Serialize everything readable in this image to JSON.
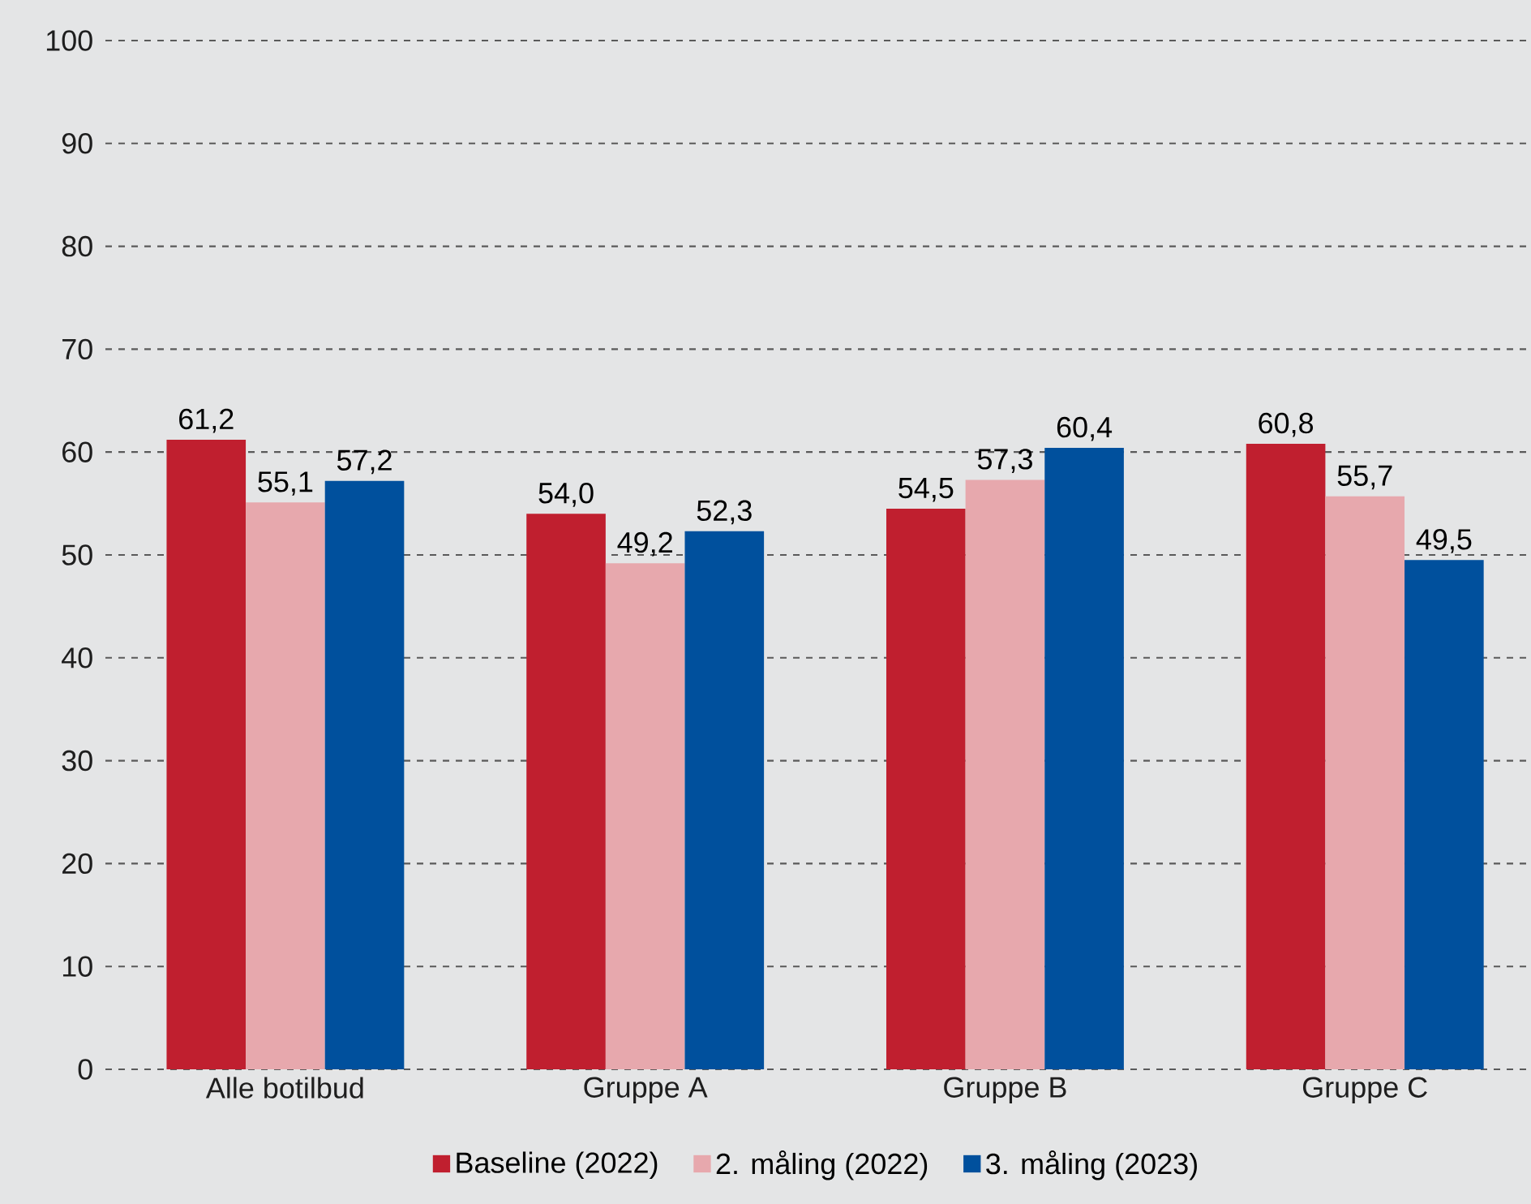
{
  "chart_data": {
    "type": "bar",
    "categories": [
      "Alle botilbud",
      "Gruppe A",
      "Gruppe B",
      "Gruppe C"
    ],
    "series": [
      {
        "name": "Baseline (2022)",
        "color": "#c01f2f",
        "values": [
          61.2,
          54.0,
          54.5,
          60.8
        ],
        "value_labels": [
          "61,2",
          "54,0",
          "54,5",
          "60,8"
        ]
      },
      {
        "name": "2. måling (2022)",
        "color": "#e7a8ad",
        "values": [
          55.1,
          49.2,
          57.3,
          55.7
        ],
        "value_labels": [
          "55,1",
          "49,2",
          "57,3",
          "55,7"
        ]
      },
      {
        "name": "3. måling (2023)",
        "color": "#00509d",
        "values": [
          57.2,
          52.3,
          60.4,
          49.5
        ],
        "value_labels": [
          "57,2",
          "52,3",
          "60,4",
          "49,5"
        ]
      }
    ],
    "ylim": [
      0,
      100
    ],
    "yticks": [
      0,
      10,
      20,
      30,
      40,
      50,
      60,
      70,
      80,
      90,
      100
    ],
    "grid": "y",
    "legend": "bottom"
  }
}
